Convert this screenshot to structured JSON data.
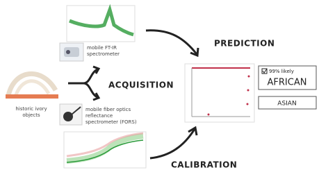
{
  "nodes": {
    "prediction": "PREDICTION",
    "acquisition": "ACQUISITION",
    "calibration": "CALIBRATION",
    "ftir": [
      "mobile FT-IR",
      "spectrometer"
    ],
    "ivory": [
      "historic ivory",
      "objects"
    ],
    "fors": [
      "mobile fiber optics",
      "reflectance",
      "spectrometer (FORS)"
    ],
    "result_likely": "99% likely",
    "result_african": "AFRICAN",
    "result_asian": "ASIAN"
  }
}
